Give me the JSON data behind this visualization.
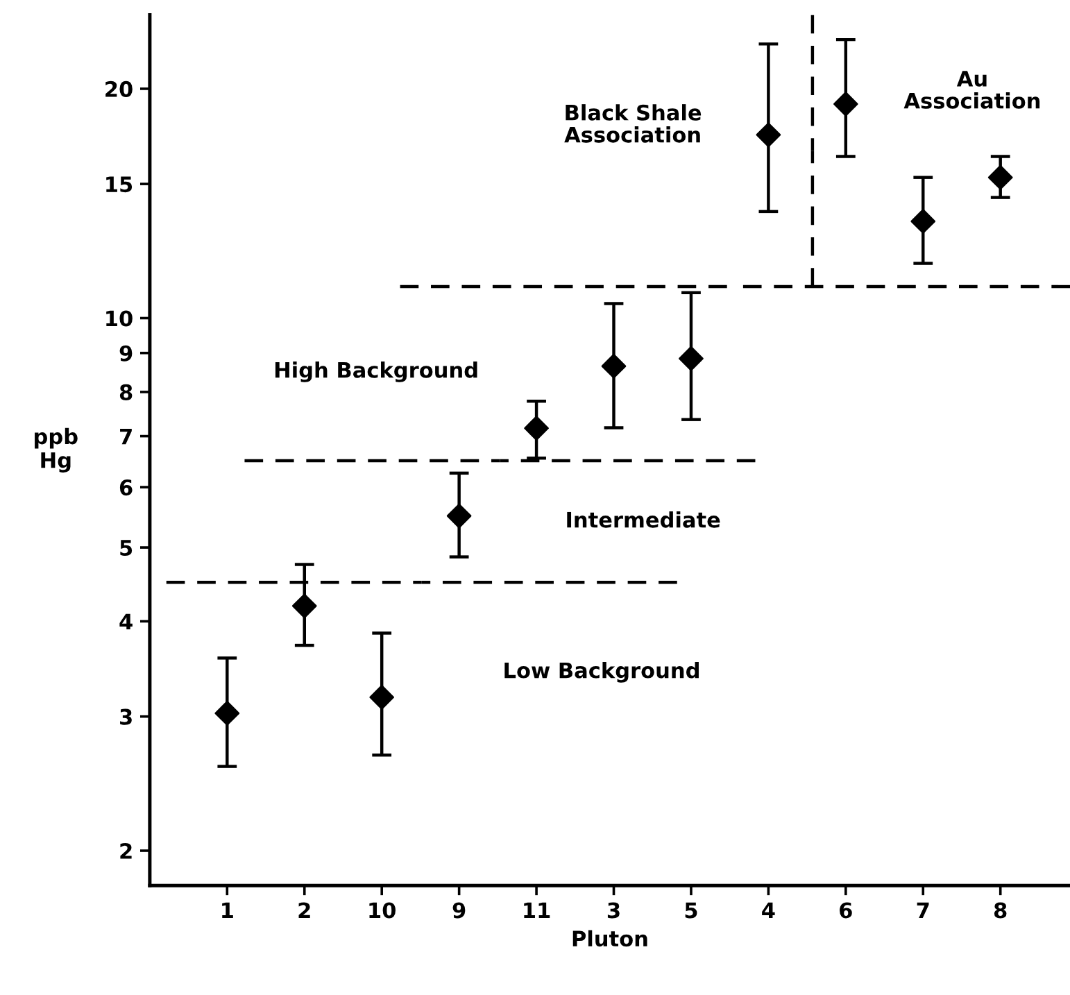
{
  "chart_data": {
    "type": "scatter",
    "xlabel": "Pluton",
    "ylabel": "ppb\nHg",
    "log": "y",
    "categories": [
      "1",
      "2",
      "10",
      "9",
      "11",
      "3",
      "5",
      "4",
      "6",
      "7",
      "8"
    ],
    "ylim": [
      1.8,
      25
    ],
    "yticks": [
      2,
      3,
      4,
      5,
      6,
      7,
      8,
      9,
      10,
      15,
      20
    ],
    "grid": false,
    "marker": "diamond",
    "series": [
      {
        "color": "#000000",
        "values": [
          3.03,
          4.19,
          3.18,
          5.5,
          7.17,
          8.65,
          8.85,
          17.4,
          19.1,
          13.4,
          15.3
        ],
        "errors": [
          [
            2.58,
            3.58
          ],
          [
            3.72,
            4.75
          ],
          [
            2.67,
            3.86
          ],
          [
            4.86,
            6.26
          ],
          [
            6.55,
            7.78
          ],
          [
            7.18,
            10.45
          ],
          [
            7.36,
            10.8
          ],
          [
            13.8,
            22.9
          ],
          [
            16.3,
            23.2
          ],
          [
            11.8,
            15.3
          ],
          [
            14.4,
            16.3
          ]
        ]
      }
    ],
    "ref_lines": [
      {
        "axis": "y",
        "value": 4.5,
        "line_style": "dashed",
        "color": "#000000"
      },
      {
        "axis": "y",
        "value": 6.5,
        "line_style": "dashed",
        "color": "#000000"
      },
      {
        "axis": "y",
        "value": 11.0,
        "line_style": "dashed",
        "color": "#000000"
      }
    ],
    "annotations": [
      "Low Background",
      "Intermediate",
      "High Background",
      "Black Shale\nAssociation",
      "Au\nAssociation"
    ]
  }
}
